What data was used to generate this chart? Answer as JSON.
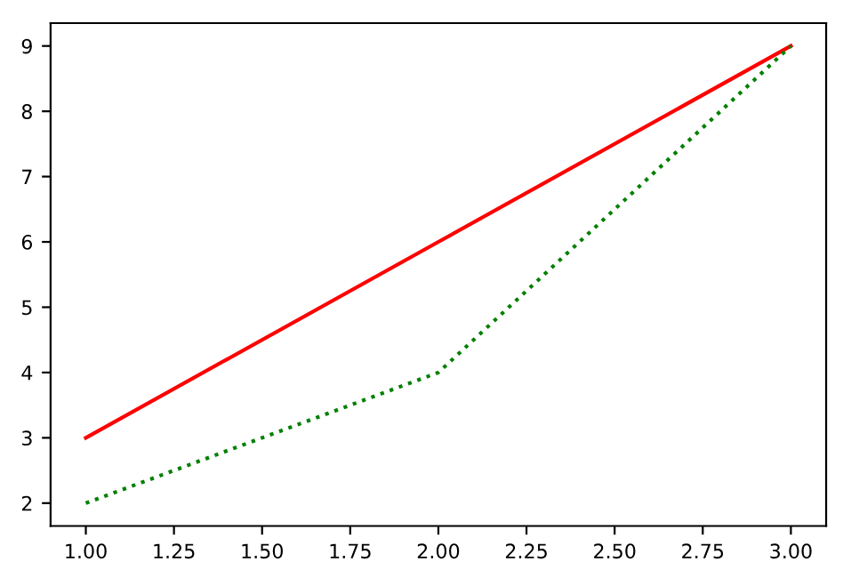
{
  "chart_data": {
    "type": "line",
    "x": [
      1,
      2,
      3
    ],
    "series": [
      {
        "color": "#ff0000",
        "values": [
          3,
          6,
          9
        ],
        "line_style": "solid"
      },
      {
        "color": "#008000",
        "values": [
          2,
          4,
          9
        ],
        "line_style": "dotted"
      }
    ],
    "xlim": [
      0.9,
      3.1
    ],
    "ylim": [
      1.65,
      9.35
    ],
    "xticks": [
      {
        "value": 1,
        "label": "1.00"
      },
      {
        "value": 1.25,
        "label": "1.25"
      },
      {
        "value": 1.5,
        "label": "1.50"
      },
      {
        "value": 1.75,
        "label": "1.75"
      },
      {
        "value": 2,
        "label": "2.00"
      },
      {
        "value": 2.25,
        "label": "2.25"
      },
      {
        "value": 2.5,
        "label": "2.50"
      },
      {
        "value": 2.75,
        "label": "2.75"
      },
      {
        "value": 3,
        "label": "3.00"
      }
    ],
    "yticks": [
      2,
      3,
      4,
      5,
      6,
      7,
      8,
      9
    ],
    "grid": false,
    "legend": false
  }
}
